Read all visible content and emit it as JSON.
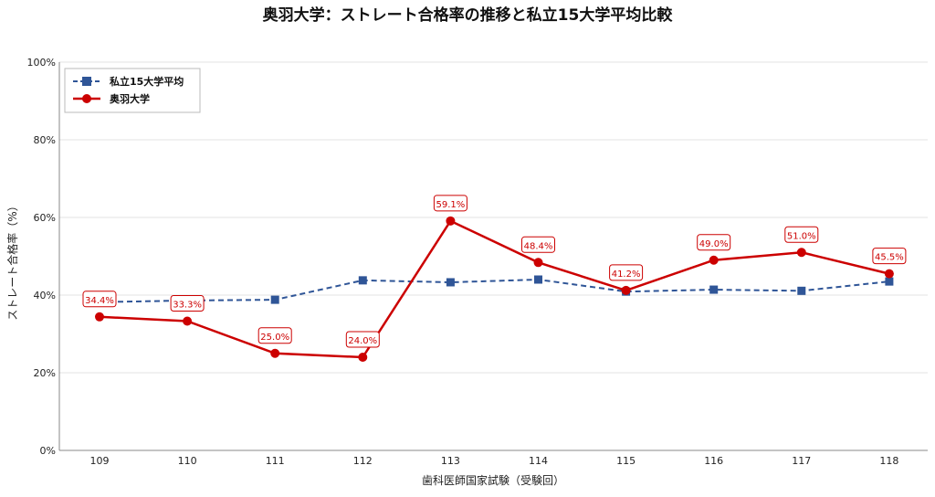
{
  "chart_data": {
    "type": "line",
    "title": "奥羽大学：ストレート合格率の推移と私立15大学平均比較",
    "xlabel": "歯科医師国家試験（受験回）",
    "ylabel": "ストレート合格率（%）",
    "ylim": [
      0,
      100
    ],
    "yticks": [
      "0%",
      "20%",
      "40%",
      "60%",
      "80%",
      "100%"
    ],
    "ytick_values": [
      0,
      20,
      40,
      60,
      80,
      100
    ],
    "categories": [
      "109",
      "110",
      "111",
      "112",
      "113",
      "114",
      "115",
      "116",
      "117",
      "118"
    ],
    "grid": "horizontal",
    "legend_position": "top-left",
    "series": [
      {
        "name": "私立15大学平均",
        "color": "#2f5597",
        "style": "dashed",
        "marker": "square",
        "values": [
          38.2,
          38.6,
          38.8,
          43.8,
          43.3,
          44.0,
          40.9,
          41.4,
          41.1,
          43.5
        ]
      },
      {
        "name": "奥羽大学",
        "color": "#cc0000",
        "style": "solid",
        "marker": "circle",
        "values": [
          34.4,
          33.3,
          25.0,
          24.0,
          59.1,
          48.4,
          41.2,
          49.0,
          51.0,
          45.5
        ],
        "data_labels": [
          "34.4%",
          "33.3%",
          "25.0%",
          "24.0%",
          "59.1%",
          "48.4%",
          "41.2%",
          "49.0%",
          "51.0%",
          "45.5%"
        ]
      }
    ]
  }
}
